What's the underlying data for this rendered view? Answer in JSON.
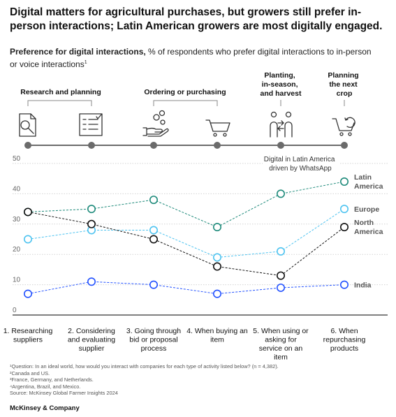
{
  "title": "Digital matters for agricultural purchases, but growers still prefer in-person interactions; Latin American growers are most digitally engaged.",
  "subtitle_bold": "Preference for digital interactions,",
  "subtitle_rest": " % of respondents who prefer digital interactions to in-person or voice interactions",
  "subtitle_sup": "1",
  "phase_groups": [
    {
      "label": "Research and planning"
    },
    {
      "label": "Ordering or purchasing"
    },
    {
      "label": "Planting, in-season, and harvest"
    },
    {
      "label": "Planning the next crop"
    }
  ],
  "icons": [
    "document-search-icon",
    "checklist-icon",
    "hand-coins-icon",
    "shopping-cart-icon",
    "people-exchange-icon",
    "cart-cycle-icon"
  ],
  "annotation": "Digital in Latin America driven by WhatsApp",
  "colors": {
    "latin_america": "#1d8a7a",
    "europe": "#4dc3f0",
    "north_america": "#111111",
    "india": "#2251ff",
    "timeline": "#6b6b6b",
    "grid": "#d4d4d4",
    "label": "#666666"
  },
  "chart_data": {
    "type": "line",
    "categories": [
      "1. Researching suppliers",
      "2. Considering and evaluating supplier",
      "3. Going through bid or proposal process",
      "4. When buying an item",
      "5. When using or asking for service on an item",
      "6. When repurchasing products"
    ],
    "yticks": [
      0,
      10,
      20,
      30,
      40,
      50
    ],
    "ylim": [
      0,
      50
    ],
    "grid": true,
    "series": [
      {
        "name": "Latin America",
        "key": "latin_america",
        "values": [
          34,
          35,
          38,
          29,
          40,
          44
        ]
      },
      {
        "name": "Europe",
        "key": "europe",
        "values": [
          25,
          28,
          28,
          19,
          21,
          35
        ]
      },
      {
        "name": "North America",
        "key": "north_america",
        "values": [
          34,
          30,
          25,
          16,
          13,
          29
        ]
      },
      {
        "name": "India",
        "key": "india",
        "values": [
          7,
          11,
          10,
          7,
          9,
          10
        ]
      }
    ]
  },
  "footnotes": [
    "¹Question: In an ideal world, how would you interact with companies for each type of activity listed below? (n = 4,382).",
    "²Canada and US.",
    "³France, Germany, and Netherlands.",
    "⁴Argentina, Brazil, and Mexico.",
    "Source: McKinsey Global Farmer Insights 2024"
  ],
  "brand": "McKinsey & Company"
}
